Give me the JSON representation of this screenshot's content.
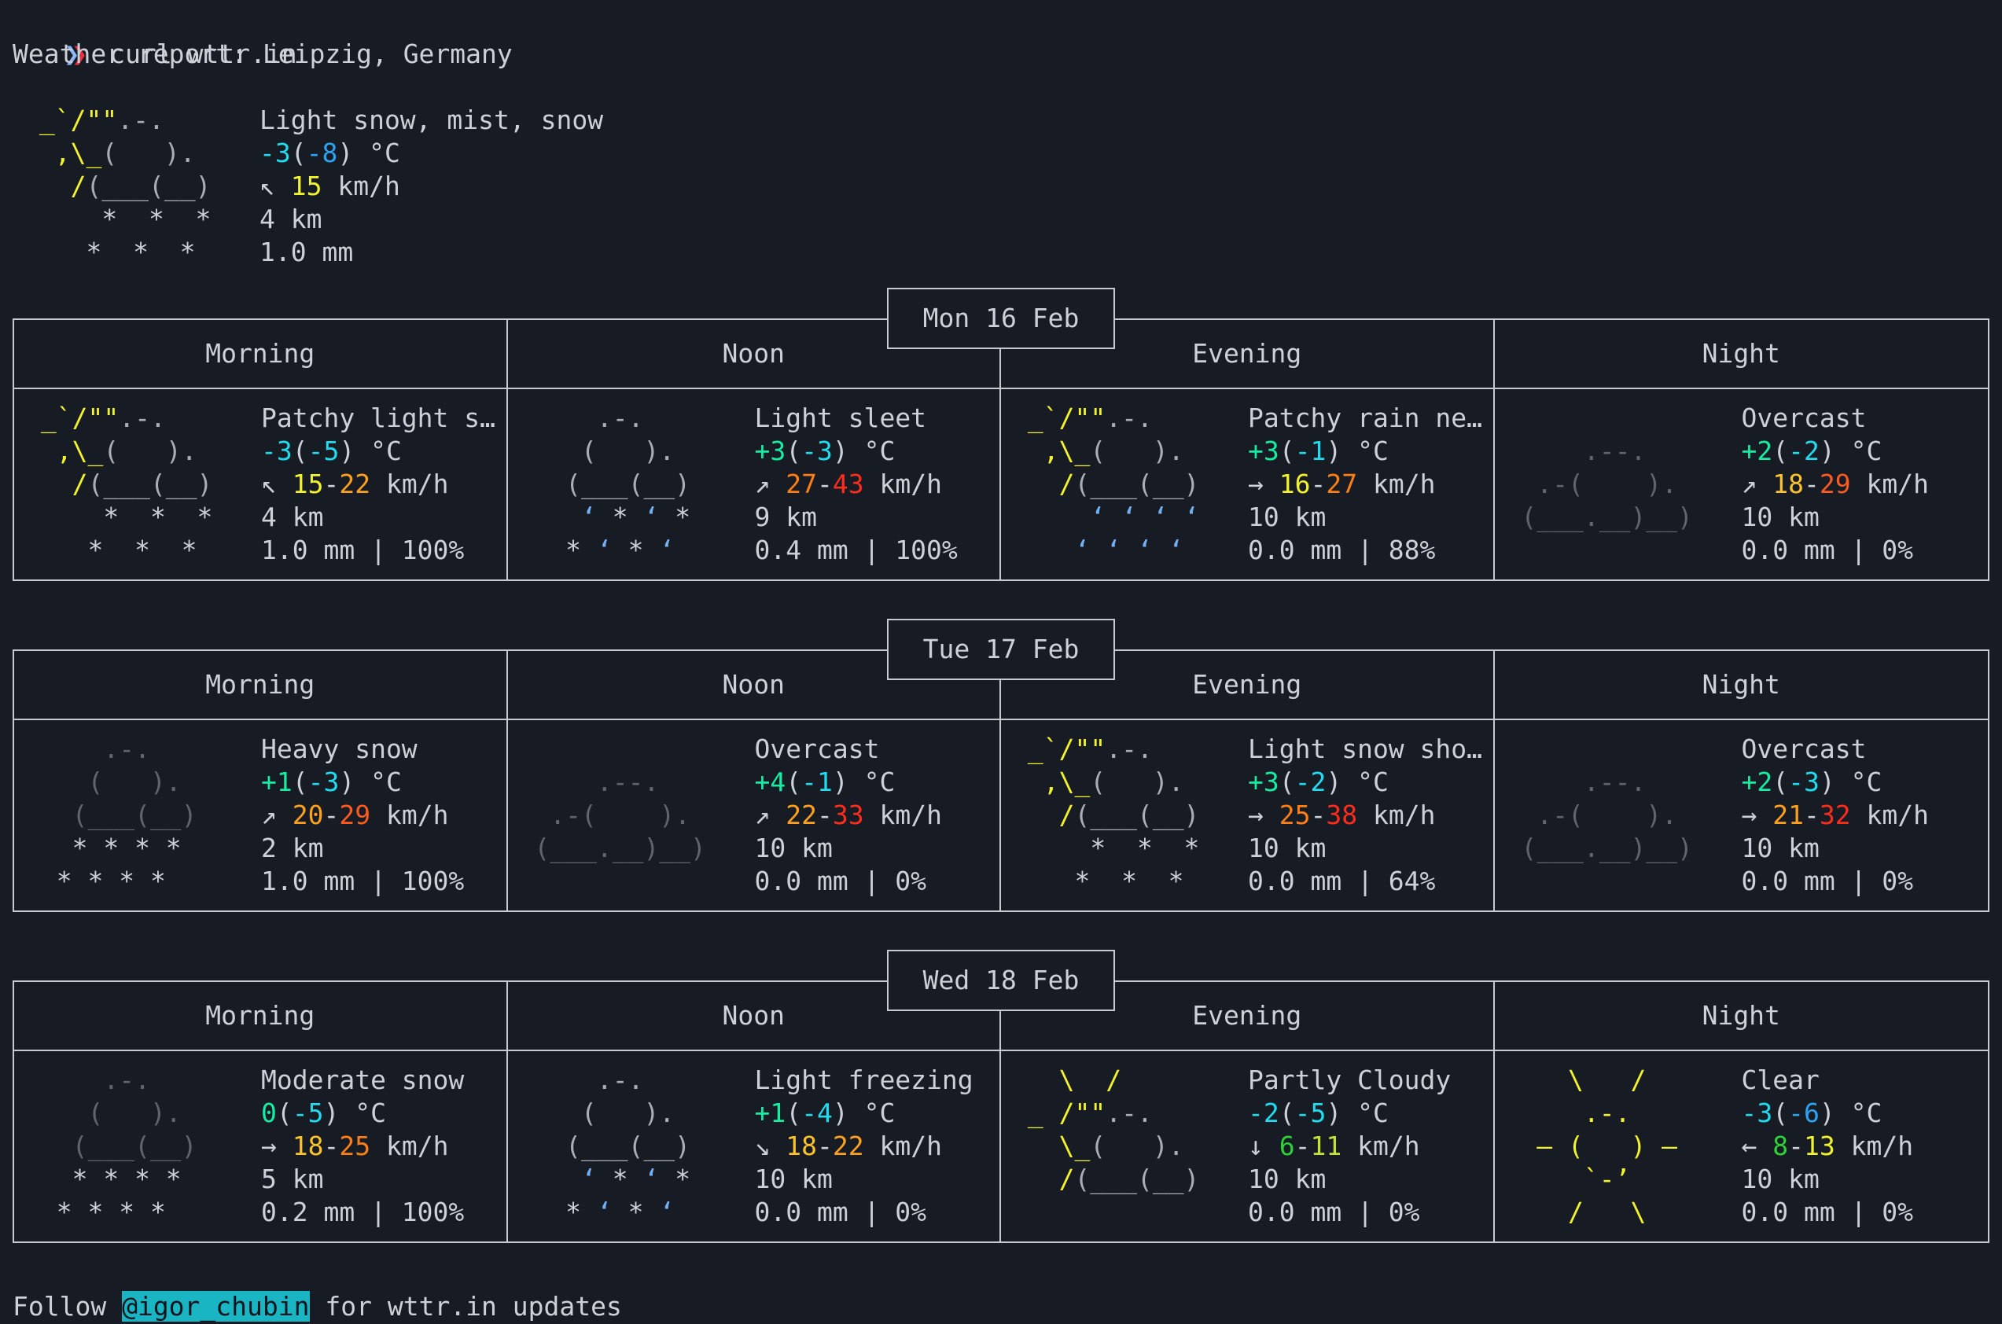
{
  "prompt": {
    "chevron": "❯",
    "command": "curl wttr.in"
  },
  "report_title": "Weather report: Leipzig, Germany",
  "footer": {
    "prefix": "Follow ",
    "handle": "@igor_chubin",
    "suffix": " for wttr.in updates"
  },
  "theme": {
    "bg": "#161b24",
    "border": "#c6cbd2",
    "hl_bg": "#19b5c2",
    "hl_fg": "#0f141d",
    "prompt_blue": "#8cb8f8",
    "prompt_red": "#ef2e41"
  },
  "palette": {
    "w": "#ccd1d8",
    "g": "#a9aeb6",
    "dg": "#5f656c",
    "y": "#f2f32b",
    "gd": "#fdc32a",
    "am": "#ffa01f",
    "o": "#ff7f16",
    "do": "#ff5a20",
    "r": "#ff2d1c",
    "gn": "#16eda3",
    "cy": "#20dcee",
    "bl": "#2aa5f3",
    "wg": "#2dd336",
    "li": "#c4e236",
    "bd": "#74aff3"
  },
  "icons": {
    "sun_snow": [
      [
        [
          "w",
          " "
        ],
        [
          "y",
          "_`/\"\""
        ],
        [
          "g",
          ".-."
        ]
      ],
      [
        [
          "w",
          "  "
        ],
        [
          "y",
          ",\\_"
        ],
        [
          "g",
          "(   )."
        ]
      ],
      [
        [
          "w",
          "   "
        ],
        [
          "y",
          "/"
        ],
        [
          "g",
          "(___(__)"
        ]
      ],
      [
        [
          "w",
          "     *  *  *"
        ]
      ],
      [
        [
          "w",
          "    *  *  * "
        ]
      ]
    ],
    "sun_rain": [
      [
        [
          "w",
          " "
        ],
        [
          "y",
          "_`/\"\""
        ],
        [
          "g",
          ".-."
        ]
      ],
      [
        [
          "w",
          "  "
        ],
        [
          "y",
          ",\\_"
        ],
        [
          "g",
          "(   )."
        ]
      ],
      [
        [
          "w",
          "   "
        ],
        [
          "y",
          "/"
        ],
        [
          "g",
          "(___(__)"
        ]
      ],
      [
        [
          "w",
          "     "
        ],
        [
          "bd",
          "‘ ‘ ‘ ‘"
        ]
      ],
      [
        [
          "w",
          "    "
        ],
        [
          "bd",
          "‘ ‘ ‘ ‘"
        ]
      ]
    ],
    "sleet": [
      [
        [
          "g",
          "     .-."
        ]
      ],
      [
        [
          "g",
          "    (   )."
        ]
      ],
      [
        [
          "g",
          "   (___(__)"
        ]
      ],
      [
        [
          "w",
          "    "
        ],
        [
          "bd",
          "‘"
        ],
        [
          "w",
          " * "
        ],
        [
          "bd",
          "‘"
        ],
        [
          "w",
          " *"
        ]
      ],
      [
        [
          "w",
          "   * "
        ],
        [
          "bd",
          "‘"
        ],
        [
          "w",
          " * "
        ],
        [
          "bd",
          "‘"
        ]
      ]
    ],
    "snow_heavy": [
      [
        [
          "dg",
          "     .-."
        ]
      ],
      [
        [
          "dg",
          "    (   )."
        ]
      ],
      [
        [
          "dg",
          "   (___(__)"
        ]
      ],
      [
        [
          "w",
          "   * * * *"
        ]
      ],
      [
        [
          "w",
          "  * * * *"
        ]
      ]
    ],
    "overcast": [
      [
        [
          "w",
          " "
        ]
      ],
      [
        [
          "dg",
          "     .--."
        ]
      ],
      [
        [
          "dg",
          "  .-(    )."
        ]
      ],
      [
        [
          "dg",
          " (___.__)__)"
        ]
      ],
      [
        [
          "w",
          " "
        ]
      ]
    ],
    "partly_cloudy": [
      [
        [
          "y",
          "   \\  /"
        ]
      ],
      [
        [
          "w",
          " "
        ],
        [
          "y",
          "_ /\"\""
        ],
        [
          "g",
          ".-."
        ]
      ],
      [
        [
          "w",
          "   "
        ],
        [
          "y",
          "\\_"
        ],
        [
          "g",
          "(   )."
        ]
      ],
      [
        [
          "w",
          "   "
        ],
        [
          "y",
          "/"
        ],
        [
          "g",
          "(___(__)"
        ]
      ],
      [
        [
          "w",
          " "
        ]
      ]
    ],
    "clear": [
      [
        [
          "y",
          "    \\   /"
        ]
      ],
      [
        [
          "y",
          "     .-."
        ]
      ],
      [
        [
          "y",
          "  – (   ) –"
        ]
      ],
      [
        [
          "y",
          "     `-’"
        ]
      ],
      [
        [
          "y",
          "    /   \\"
        ]
      ]
    ]
  },
  "current": {
    "icon": "sun_snow",
    "lines": [
      [
        [
          "w",
          "Light snow, mist, snow"
        ]
      ],
      [
        [
          "cy",
          "-3"
        ],
        [
          "w",
          "("
        ],
        [
          "bl",
          "-8"
        ],
        [
          "w",
          ") °C"
        ]
      ],
      [
        [
          "w",
          "↖ "
        ],
        [
          "y",
          "15"
        ],
        [
          "w",
          " km/h"
        ]
      ],
      [
        [
          "w",
          "4 km"
        ]
      ],
      [
        [
          "w",
          "1.0 mm"
        ]
      ]
    ]
  },
  "days": [
    {
      "date": "Mon 16 Feb",
      "columns": [
        "Morning",
        "Noon",
        "Evening",
        "Night"
      ],
      "cells": [
        {
          "icon": "sun_snow",
          "lines": [
            [
              [
                "w",
                "Patchy light s…"
              ]
            ],
            [
              [
                "cy",
                "-3"
              ],
              [
                "w",
                "("
              ],
              [
                "cy",
                "-5"
              ],
              [
                "w",
                ") °C"
              ]
            ],
            [
              [
                "w",
                "↖ "
              ],
              [
                "y",
                "15"
              ],
              [
                "w",
                "-"
              ],
              [
                "am",
                "22"
              ],
              [
                "w",
                " km/h"
              ]
            ],
            [
              [
                "w",
                "4 km"
              ]
            ],
            [
              [
                "w",
                "1.0 mm | 100%"
              ]
            ]
          ]
        },
        {
          "icon": "sleet",
          "lines": [
            [
              [
                "w",
                "Light sleet"
              ]
            ],
            [
              [
                "gn",
                "+3"
              ],
              [
                "w",
                "("
              ],
              [
                "cy",
                "-3"
              ],
              [
                "w",
                ") °C"
              ]
            ],
            [
              [
                "w",
                "↗ "
              ],
              [
                "o",
                "27"
              ],
              [
                "w",
                "-"
              ],
              [
                "r",
                "43"
              ],
              [
                "w",
                " km/h"
              ]
            ],
            [
              [
                "w",
                "9 km"
              ]
            ],
            [
              [
                "w",
                "0.4 mm | 100%"
              ]
            ]
          ]
        },
        {
          "icon": "sun_rain",
          "lines": [
            [
              [
                "w",
                "Patchy rain ne…"
              ]
            ],
            [
              [
                "gn",
                "+3"
              ],
              [
                "w",
                "("
              ],
              [
                "cy",
                "-1"
              ],
              [
                "w",
                ") °C"
              ]
            ],
            [
              [
                "w",
                "→ "
              ],
              [
                "y",
                "16"
              ],
              [
                "w",
                "-"
              ],
              [
                "o",
                "27"
              ],
              [
                "w",
                " km/h"
              ]
            ],
            [
              [
                "w",
                "10 km"
              ]
            ],
            [
              [
                "w",
                "0.0 mm | 88%"
              ]
            ]
          ]
        },
        {
          "icon": "overcast",
          "lines": [
            [
              [
                "w",
                "Overcast"
              ]
            ],
            [
              [
                "gn",
                "+2"
              ],
              [
                "w",
                "("
              ],
              [
                "cy",
                "-2"
              ],
              [
                "w",
                ") °C"
              ]
            ],
            [
              [
                "w",
                "↗ "
              ],
              [
                "gd",
                "18"
              ],
              [
                "w",
                "-"
              ],
              [
                "do",
                "29"
              ],
              [
                "w",
                " km/h"
              ]
            ],
            [
              [
                "w",
                "10 km"
              ]
            ],
            [
              [
                "w",
                "0.0 mm | 0%"
              ]
            ]
          ]
        }
      ]
    },
    {
      "date": "Tue 17 Feb",
      "columns": [
        "Morning",
        "Noon",
        "Evening",
        "Night"
      ],
      "cells": [
        {
          "icon": "snow_heavy",
          "lines": [
            [
              [
                "w",
                "Heavy snow"
              ]
            ],
            [
              [
                "gn",
                "+1"
              ],
              [
                "w",
                "("
              ],
              [
                "cy",
                "-3"
              ],
              [
                "w",
                ") °C"
              ]
            ],
            [
              [
                "w",
                "↗ "
              ],
              [
                "am",
                "20"
              ],
              [
                "w",
                "-"
              ],
              [
                "do",
                "29"
              ],
              [
                "w",
                " km/h"
              ]
            ],
            [
              [
                "w",
                "2 km"
              ]
            ],
            [
              [
                "w",
                "1.0 mm | 100%"
              ]
            ]
          ]
        },
        {
          "icon": "overcast",
          "lines": [
            [
              [
                "w",
                "Overcast"
              ]
            ],
            [
              [
                "gn",
                "+4"
              ],
              [
                "w",
                "("
              ],
              [
                "cy",
                "-1"
              ],
              [
                "w",
                ") °C"
              ]
            ],
            [
              [
                "w",
                "↗ "
              ],
              [
                "am",
                "22"
              ],
              [
                "w",
                "-"
              ],
              [
                "r",
                "33"
              ],
              [
                "w",
                " km/h"
              ]
            ],
            [
              [
                "w",
                "10 km"
              ]
            ],
            [
              [
                "w",
                "0.0 mm | 0%"
              ]
            ]
          ]
        },
        {
          "icon": "sun_snow",
          "lines": [
            [
              [
                "w",
                "Light snow sho…"
              ]
            ],
            [
              [
                "gn",
                "+3"
              ],
              [
                "w",
                "("
              ],
              [
                "cy",
                "-2"
              ],
              [
                "w",
                ") °C"
              ]
            ],
            [
              [
                "w",
                "→ "
              ],
              [
                "o",
                "25"
              ],
              [
                "w",
                "-"
              ],
              [
                "r",
                "38"
              ],
              [
                "w",
                " km/h"
              ]
            ],
            [
              [
                "w",
                "10 km"
              ]
            ],
            [
              [
                "w",
                "0.0 mm | 64%"
              ]
            ]
          ]
        },
        {
          "icon": "overcast",
          "lines": [
            [
              [
                "w",
                "Overcast"
              ]
            ],
            [
              [
                "gn",
                "+2"
              ],
              [
                "w",
                "("
              ],
              [
                "cy",
                "-3"
              ],
              [
                "w",
                ") °C"
              ]
            ],
            [
              [
                "w",
                "→ "
              ],
              [
                "am",
                "21"
              ],
              [
                "w",
                "-"
              ],
              [
                "r",
                "32"
              ],
              [
                "w",
                " km/h"
              ]
            ],
            [
              [
                "w",
                "10 km"
              ]
            ],
            [
              [
                "w",
                "0.0 mm | 0%"
              ]
            ]
          ]
        }
      ]
    },
    {
      "date": "Wed 18 Feb",
      "columns": [
        "Morning",
        "Noon",
        "Evening",
        "Night"
      ],
      "cells": [
        {
          "icon": "snow_heavy",
          "lines": [
            [
              [
                "w",
                "Moderate snow"
              ]
            ],
            [
              [
                "gn",
                "0"
              ],
              [
                "w",
                "("
              ],
              [
                "cy",
                "-5"
              ],
              [
                "w",
                ") °C"
              ]
            ],
            [
              [
                "w",
                "→ "
              ],
              [
                "gd",
                "18"
              ],
              [
                "w",
                "-"
              ],
              [
                "o",
                "25"
              ],
              [
                "w",
                " km/h"
              ]
            ],
            [
              [
                "w",
                "5 km"
              ]
            ],
            [
              [
                "w",
                "0.2 mm | 100%"
              ]
            ]
          ]
        },
        {
          "icon": "sleet",
          "lines": [
            [
              [
                "w",
                "Light freezing"
              ]
            ],
            [
              [
                "gn",
                "+1"
              ],
              [
                "w",
                "("
              ],
              [
                "cy",
                "-4"
              ],
              [
                "w",
                ") °C"
              ]
            ],
            [
              [
                "w",
                "↘ "
              ],
              [
                "gd",
                "18"
              ],
              [
                "w",
                "-"
              ],
              [
                "am",
                "22"
              ],
              [
                "w",
                " km/h"
              ]
            ],
            [
              [
                "w",
                "10 km"
              ]
            ],
            [
              [
                "w",
                "0.0 mm | 0%"
              ]
            ]
          ]
        },
        {
          "icon": "partly_cloudy",
          "lines": [
            [
              [
                "w",
                "Partly Cloudy"
              ]
            ],
            [
              [
                "cy",
                "-2"
              ],
              [
                "w",
                "("
              ],
              [
                "cy",
                "-5"
              ],
              [
                "w",
                ") °C"
              ]
            ],
            [
              [
                "w",
                "↓ "
              ],
              [
                "wg",
                "6"
              ],
              [
                "w",
                "-"
              ],
              [
                "li",
                "11"
              ],
              [
                "w",
                " km/h"
              ]
            ],
            [
              [
                "w",
                "10 km"
              ]
            ],
            [
              [
                "w",
                "0.0 mm | 0%"
              ]
            ]
          ]
        },
        {
          "icon": "clear",
          "lines": [
            [
              [
                "w",
                "Clear"
              ]
            ],
            [
              [
                "cy",
                "-3"
              ],
              [
                "w",
                "("
              ],
              [
                "bl",
                "-6"
              ],
              [
                "w",
                ") °C"
              ]
            ],
            [
              [
                "w",
                "← "
              ],
              [
                "wg",
                "8"
              ],
              [
                "w",
                "-"
              ],
              [
                "y",
                "13"
              ],
              [
                "w",
                " km/h"
              ]
            ],
            [
              [
                "w",
                "10 km"
              ]
            ],
            [
              [
                "w",
                "0.0 mm | 0%"
              ]
            ]
          ]
        }
      ]
    }
  ]
}
